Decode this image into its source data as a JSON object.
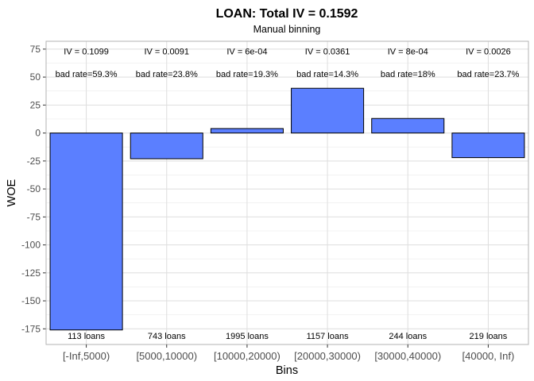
{
  "chart_data": {
    "type": "bar",
    "title": "LOAN: Total IV = 0.1592",
    "subtitle": "Manual binning",
    "xlabel": "Bins",
    "ylabel": "WOE",
    "categories": [
      "[-Inf,5000)",
      "[5000,10000)",
      "[10000,20000)",
      "[20000,30000)",
      "[30000,40000)",
      "[40000, Inf)"
    ],
    "values": [
      -176,
      -23,
      4,
      40,
      13,
      -22
    ],
    "iv_labels": [
      "IV = 0.1099",
      "IV = 0.0091",
      "IV = 6e-04",
      "IV = 0.0361",
      "IV = 8e-04",
      "IV = 0.0026"
    ],
    "bad_rate_labels": [
      "bad rate=59.3%",
      "bad rate=23.8%",
      "bad rate=19.3%",
      "bad rate=14.3%",
      "bad rate=18%",
      "bad rate=23.7%"
    ],
    "count_labels": [
      "113 loans",
      "743 loans",
      "1995 loans",
      "1157 loans",
      "244 loans",
      "219 loans"
    ],
    "y_ticks": [
      75,
      50,
      25,
      0,
      -25,
      -50,
      -75,
      -100,
      -125,
      -150,
      -175
    ],
    "ylim": [
      -189,
      82
    ],
    "bar_color": "#5b7fff",
    "bar_edge_color": "#000000",
    "grid": true
  }
}
